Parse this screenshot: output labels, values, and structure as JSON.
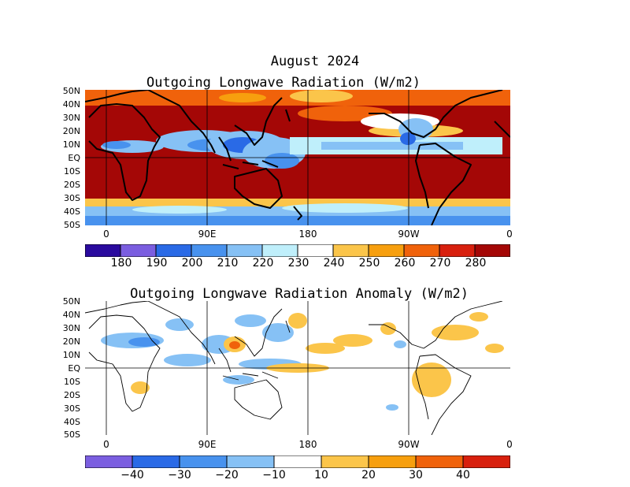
{
  "figure": {
    "title": "August 2024"
  },
  "panels": [
    {
      "title": "Outgoing Longwave Radiation (W/m2)",
      "lat_labels": [
        "50N",
        "40N",
        "30N",
        "20N",
        "10N",
        "EQ",
        "10S",
        "20S",
        "30S",
        "40S",
        "50S"
      ],
      "lon_labels": [
        "0",
        "90E",
        "180",
        "90W",
        "0"
      ],
      "colorbar": {
        "labels": [
          "180",
          "190",
          "200",
          "210",
          "220",
          "230",
          "240",
          "250",
          "260",
          "270",
          "280"
        ],
        "colors": [
          "#2a0a9e",
          "#7b5ee0",
          "#2a6ae6",
          "#4892ee",
          "#86c1f5",
          "#bfeffb",
          "#ffffff",
          "#fbc54a",
          "#f79f0e",
          "#f0620b",
          "#d8200e",
          "#a40706"
        ]
      },
      "description_colors": {
        "land": "#000000",
        "gridline": "#000000"
      }
    },
    {
      "title": "Outgoing Longwave Radiation Anomaly (W/m2)",
      "lat_labels": [
        "50N",
        "40N",
        "30N",
        "20N",
        "10N",
        "EQ",
        "10S",
        "20S",
        "30S",
        "40S",
        "50S"
      ],
      "lon_labels": [
        "0",
        "90E",
        "180",
        "90W",
        "0"
      ],
      "colorbar": {
        "labels": [
          "−40",
          "−30",
          "−20",
          "−10",
          "10",
          "20",
          "30",
          "40"
        ],
        "colors": [
          "#7b5ee0",
          "#2a6ae6",
          "#4892ee",
          "#86c1f5",
          "#ffffff",
          "#fbc54a",
          "#f79f0e",
          "#f0620b",
          "#d8200e"
        ]
      }
    }
  ]
}
